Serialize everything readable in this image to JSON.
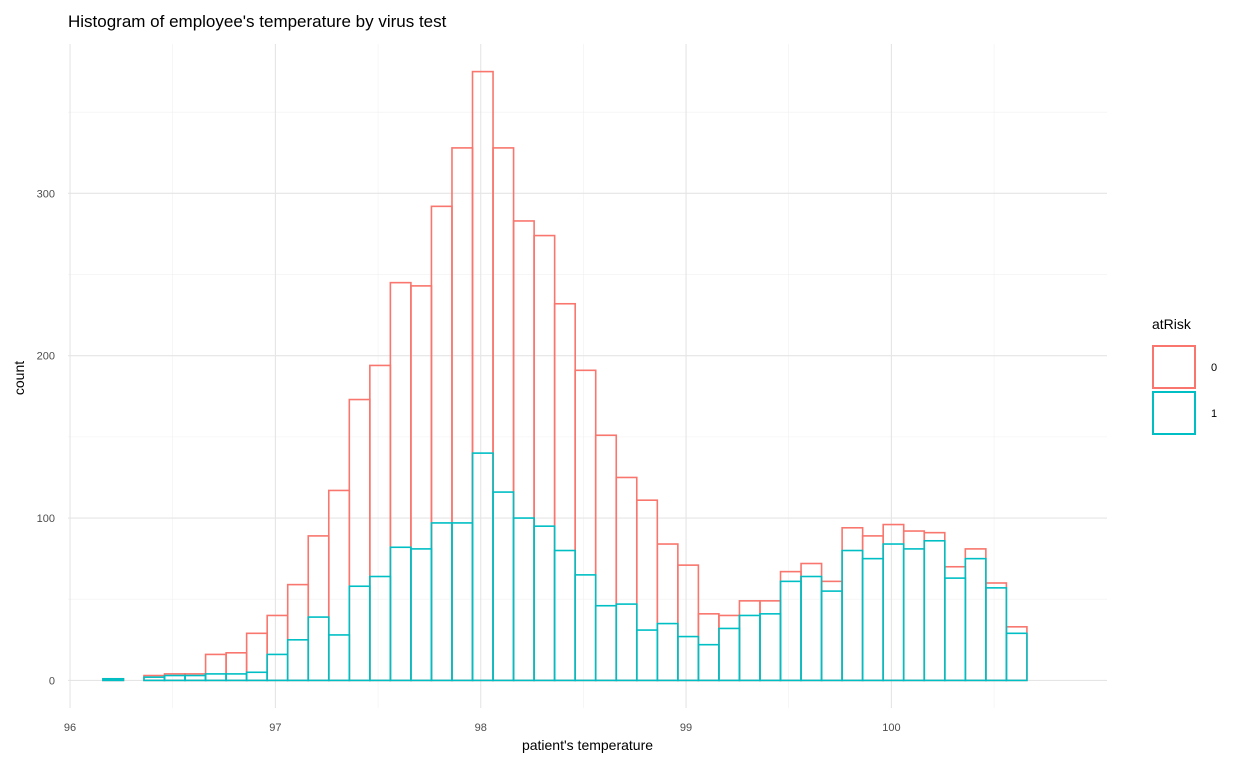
{
  "chart_data": {
    "type": "histogram",
    "title": "Histogram of employee's temperature by virus test",
    "xlabel": "patient's temperature",
    "ylabel": "count",
    "xlim": [
      95.99,
      101.05
    ],
    "ylim": [
      -17,
      392
    ],
    "x_ticks": [
      96,
      97,
      98,
      99,
      100
    ],
    "x_tick_labels": [
      "96",
      "97",
      "98",
      "99",
      "100"
    ],
    "y_ticks": [
      0,
      100,
      200,
      300
    ],
    "y_tick_labels": [
      "0",
      "100",
      "200",
      "300"
    ],
    "grid": true,
    "bin_start": 96.16,
    "bin_width": 0.1,
    "legend": {
      "title": "atRisk",
      "position": "right",
      "entries": [
        "0",
        "1"
      ]
    },
    "series": [
      {
        "name": "0",
        "color": "#F8766D",
        "values": [
          1,
          0,
          3,
          4,
          4,
          16,
          17,
          29,
          40,
          59,
          89,
          117,
          173,
          194,
          245,
          243,
          292,
          328,
          375,
          328,
          283,
          274,
          232,
          191,
          151,
          125,
          111,
          84,
          71,
          41,
          40,
          49,
          49,
          67,
          72,
          61,
          94,
          89,
          96,
          92,
          91,
          70,
          81,
          60,
          33
        ]
      },
      {
        "name": "1",
        "color": "#00BFC4",
        "values": [
          1,
          0,
          2,
          3,
          3,
          4,
          4,
          5,
          16,
          25,
          39,
          28,
          58,
          64,
          82,
          81,
          97,
          97,
          140,
          116,
          100,
          95,
          80,
          65,
          46,
          47,
          31,
          35,
          27,
          22,
          32,
          40,
          41,
          61,
          64,
          55,
          80,
          75,
          84,
          81,
          86,
          63,
          75,
          57,
          29
        ]
      }
    ]
  }
}
